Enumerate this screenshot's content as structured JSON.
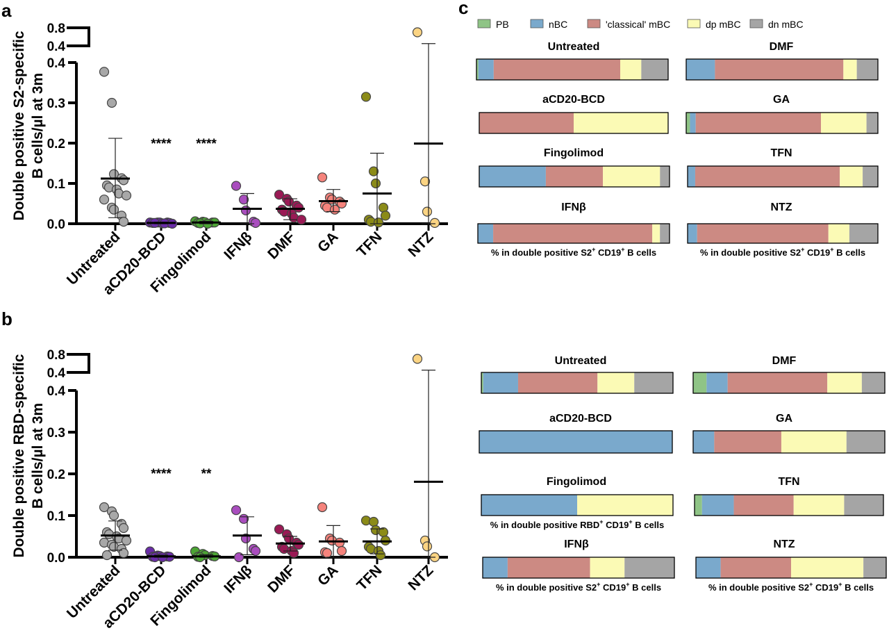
{
  "panels": {
    "a": "a",
    "b": "b",
    "c": "c"
  },
  "legend": [
    {
      "label": "PB",
      "color": "#8fc486"
    },
    {
      "label": "nBC",
      "color": "#7aa9cc"
    },
    {
      "label": "'classical' mBC",
      "color": "#cc8a83"
    },
    {
      "label": "dp mBC",
      "color": "#fbfab5"
    },
    {
      "label": "dn mBC",
      "color": "#a5a5a5"
    }
  ],
  "chart_data": [
    {
      "id": "panel-a",
      "type": "scatter",
      "ylabel_line1": "Double positive S2-specific",
      "ylabel_line2": "B cells/µl at 3m",
      "yticks_lower": [
        "0.0",
        "0.1",
        "0.2",
        "0.3",
        "0.4"
      ],
      "yticks_upper": [
        "0.4",
        "0.8"
      ],
      "ylim": [
        0,
        0.4
      ],
      "ylim_upper": [
        0.4,
        0.8
      ],
      "categories": [
        "Untreated",
        "aCD20-BCD",
        "Fingolimod",
        "IFNβ",
        "DMF",
        "GA",
        "TFN",
        "NTZ"
      ],
      "colors": [
        "#a8a8a8",
        "#6a2ca8",
        "#4ca534",
        "#a94dbe",
        "#9a1a55",
        "#f5837c",
        "#8b8b18",
        "#fbd483"
      ],
      "significance": [
        "",
        "****",
        "****",
        "",
        "",
        "",
        "",
        ""
      ],
      "means": [
        0.112,
        0.002,
        0.003,
        0.037,
        0.037,
        0.056,
        0.075,
        0.199
      ],
      "sd_low": [
        0.015,
        0.0,
        0.0,
        0.0,
        0.01,
        0.03,
        0.0,
        0.0
      ],
      "sd_high": [
        0.212,
        0.004,
        0.006,
        0.075,
        0.062,
        0.085,
        0.175,
        0.45
      ],
      "points": [
        [
          0.377,
          0.3,
          0.123,
          0.113,
          0.108,
          0.095,
          0.09,
          0.085,
          0.075,
          0.07,
          0.06,
          0.04,
          0.035,
          0.02,
          0.005
        ],
        [
          0.003,
          0.003,
          0.003,
          0.003,
          0.002,
          0.002,
          0.002,
          0.001,
          0.001,
          0.0
        ],
        [
          0.006,
          0.005,
          0.004,
          0.003,
          0.003,
          0.002,
          0.001,
          0.0
        ],
        [
          0.094,
          0.06,
          0.033,
          0.005,
          0.002
        ],
        [
          0.072,
          0.062,
          0.055,
          0.045,
          0.04,
          0.035,
          0.03,
          0.025,
          0.015,
          0.01
        ],
        [
          0.115,
          0.065,
          0.06,
          0.055,
          0.05,
          0.045,
          0.04,
          0.035
        ],
        [
          0.315,
          0.13,
          0.1,
          0.04,
          0.02,
          0.01,
          0.005,
          0.003
        ],
        [
          0.7,
          0.105,
          0.03,
          0.002
        ]
      ]
    },
    {
      "id": "panel-b",
      "type": "scatter",
      "ylabel_line1": "Double positive RBD-specific",
      "ylabel_line2": "B cells/µl at 3m",
      "yticks_lower": [
        "0.0",
        "0.1",
        "0.2",
        "0.3",
        "0.4"
      ],
      "yticks_upper": [
        "0.4",
        "0.8"
      ],
      "ylim": [
        0,
        0.4
      ],
      "ylim_upper": [
        0.4,
        0.8
      ],
      "categories": [
        "Untreated",
        "aCD20-BCD",
        "Fingolimod",
        "IFNβ",
        "DMF",
        "GA",
        "TFN",
        "NTZ"
      ],
      "colors": [
        "#a8a8a8",
        "#6a2ca8",
        "#4ca534",
        "#a94dbe",
        "#9a1a55",
        "#f5837c",
        "#8b8b18",
        "#fbd483"
      ],
      "significance": [
        "",
        "****",
        "**",
        "",
        "",
        "",
        "",
        ""
      ],
      "means": [
        0.052,
        0.002,
        0.002,
        0.052,
        0.033,
        0.038,
        0.038,
        0.181
      ],
      "sd_low": [
        0.017,
        0.0,
        0.0,
        0.006,
        0.015,
        0.0,
        0.008,
        0.0
      ],
      "sd_high": [
        0.087,
        0.005,
        0.006,
        0.097,
        0.05,
        0.076,
        0.068,
        0.45
      ],
      "points": [
        [
          0.12,
          0.11,
          0.1,
          0.08,
          0.07,
          0.06,
          0.055,
          0.05,
          0.045,
          0.04,
          0.035,
          0.03,
          0.025,
          0.02,
          0.01,
          0.005
        ],
        [
          0.014,
          0.004,
          0.003,
          0.002,
          0.001,
          0.001,
          0.0,
          0.0
        ],
        [
          0.014,
          0.008,
          0.005,
          0.003,
          0.002,
          0.001,
          0.0
        ],
        [
          0.113,
          0.092,
          0.045,
          0.02,
          0.015,
          0.0
        ],
        [
          0.067,
          0.055,
          0.045,
          0.035,
          0.03,
          0.025,
          0.02,
          0.015,
          0.01
        ],
        [
          0.12,
          0.045,
          0.04,
          0.035,
          0.015,
          0.012,
          0.01
        ],
        [
          0.088,
          0.085,
          0.065,
          0.06,
          0.04,
          0.025,
          0.02,
          0.015,
          0.005
        ],
        [
          0.7,
          0.04,
          0.026,
          0.0
        ]
      ]
    },
    {
      "id": "panel-c",
      "type": "bar",
      "orientation": "horizontal-stacked",
      "segments": [
        "PB",
        "nBC",
        "'classical' mBC",
        "dp mBC",
        "dn mBC"
      ],
      "caption_s2_pre": "% in double positive S2",
      "caption_rbd_pre": "% in double positive RBD",
      "caption_sup_plus": "+",
      "caption_mid": " CD19",
      "caption_tail": " B cells",
      "bars": [
        {
          "group": "S2",
          "title": "Untreated",
          "caption": "",
          "values": [
            1,
            8,
            66,
            11,
            14
          ]
        },
        {
          "group": "S2",
          "title": "DMF",
          "caption": "",
          "values": [
            0,
            15,
            67,
            7,
            11
          ]
        },
        {
          "group": "S2",
          "title": "aCD20-BCD",
          "caption": "",
          "values": [
            0,
            0,
            50,
            50,
            0
          ]
        },
        {
          "group": "S2",
          "title": "GA",
          "caption": "",
          "values": [
            2,
            3,
            66,
            24,
            6
          ]
        },
        {
          "group": "S2",
          "title": "Fingolimod",
          "caption": "",
          "values": [
            0,
            35,
            30,
            30,
            5
          ]
        },
        {
          "group": "S2",
          "title": "TFN",
          "caption": "",
          "values": [
            0,
            4,
            76,
            12,
            8
          ]
        },
        {
          "group": "S2",
          "title": "IFNβ",
          "caption": "s2",
          "values": [
            0,
            8,
            83,
            4,
            5
          ]
        },
        {
          "group": "S2",
          "title": "NTZ",
          "caption": "s2",
          "values": [
            0,
            5,
            69,
            11,
            15
          ]
        },
        {
          "group": "RBD",
          "title": "Untreated",
          "caption": "",
          "values": [
            1,
            18,
            41,
            19,
            20
          ]
        },
        {
          "group": "RBD",
          "title": "DMF",
          "caption": "",
          "values": [
            7,
            11,
            52,
            18,
            12
          ]
        },
        {
          "group": "RBD",
          "title": "aCD20-BCD",
          "caption": "",
          "values": [
            0,
            100,
            0,
            0,
            0
          ]
        },
        {
          "group": "RBD",
          "title": "GA",
          "caption": "",
          "values": [
            0,
            11,
            35,
            34,
            20
          ]
        },
        {
          "group": "RBD",
          "title": "Fingolimod",
          "caption": "rbd",
          "values": [
            0,
            50,
            0,
            50,
            0
          ]
        },
        {
          "group": "RBD",
          "title": "TFN",
          "caption": "",
          "values": [
            4,
            17,
            32,
            27,
            21
          ]
        },
        {
          "group": "RBD",
          "title": "IFNβ",
          "caption": "s2",
          "values": [
            0,
            13,
            43,
            18,
            26
          ]
        },
        {
          "group": "RBD",
          "title": "NTZ",
          "caption": "s2",
          "values": [
            0,
            13,
            37,
            38,
            12
          ]
        }
      ]
    }
  ]
}
